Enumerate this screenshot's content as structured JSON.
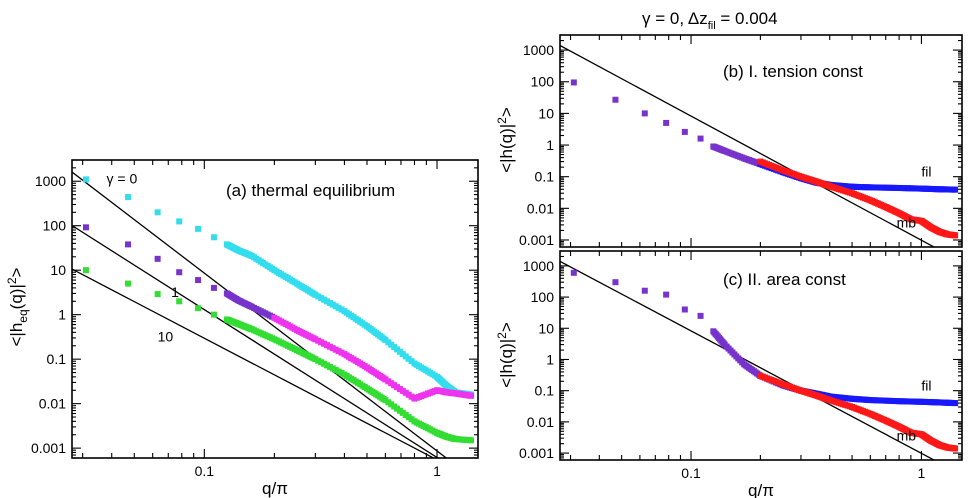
{
  "figure_title": "γ = 0, Δz",
  "figure_title_sub": "fil",
  "figure_title_tail": " = 0.004",
  "colors": {
    "cyan": "#33ddee",
    "magenta": "#ee33ee",
    "purple": "#7733cc",
    "green": "#33dd33",
    "blue": "#1818ff",
    "red": "#ff1818",
    "fit": "#000000"
  },
  "chart_data": [
    {
      "id": "a",
      "type": "scatter",
      "title": "(a) thermal equilibrium",
      "xlabel": "q/π",
      "ylabel_pre": "<|h",
      "ylabel_sub": "eq",
      "ylabel_post": "(q)|",
      "ylabel_sup": "2",
      "ylabel_end": ">",
      "xscale": "log",
      "yscale": "log",
      "xlim": [
        0.027,
        1.5
      ],
      "ylim": [
        0.0006,
        3000
      ],
      "xticks": [
        0.1,
        1
      ],
      "xtick_labels": [
        "0.1",
        "1"
      ],
      "yticks": [
        0.001,
        0.01,
        0.1,
        1,
        10,
        100,
        1000
      ],
      "ytick_labels": [
        "0.001",
        "0.01",
        "0.1",
        "1",
        "10",
        "100",
        "1000"
      ],
      "annotations": [
        {
          "text": "γ = 0",
          "x": 0.038,
          "y": 900
        },
        {
          "text": "1",
          "x": 0.072,
          "y": 2.5
        },
        {
          "text": "10",
          "x": 0.063,
          "y": 0.25
        }
      ],
      "series": [
        {
          "gamma": 0,
          "color": "cyan",
          "x": [
            0.031,
            0.047,
            0.063,
            0.078,
            0.094,
            0.11,
            0.125,
            0.14,
            0.16,
            0.2,
            0.25,
            0.3,
            0.4,
            0.5,
            0.6,
            0.8,
            1.0,
            1.1,
            1.2,
            1.4
          ],
          "y": [
            1100,
            440,
            200,
            125,
            85,
            55,
            38,
            28,
            21,
            10,
            5,
            2.8,
            1.2,
            0.55,
            0.27,
            0.08,
            0.04,
            0.025,
            0.018,
            0.016
          ]
        },
        {
          "gamma": 1,
          "color": "magenta",
          "x": [
            0.031,
            0.047,
            0.063,
            0.078,
            0.094,
            0.11,
            0.125,
            0.14,
            0.16,
            0.2,
            0.25,
            0.3,
            0.4,
            0.5,
            0.6,
            0.8,
            1.0,
            1.1,
            1.2,
            1.4
          ],
          "y": [
            92,
            38,
            18,
            9,
            6,
            4,
            3,
            2.1,
            1.5,
            0.85,
            0.45,
            0.28,
            0.13,
            0.065,
            0.035,
            0.013,
            0.02,
            0.018,
            0.017,
            0.015
          ]
        },
        {
          "gamma": 10,
          "color": "green",
          "x": [
            0.031,
            0.047,
            0.063,
            0.078,
            0.094,
            0.11,
            0.125,
            0.14,
            0.16,
            0.2,
            0.25,
            0.3,
            0.4,
            0.5,
            0.6,
            0.8,
            1.0,
            1.1,
            1.2,
            1.4
          ],
          "y": [
            10,
            5,
            2.9,
            2,
            1.4,
            1,
            0.78,
            0.62,
            0.47,
            0.28,
            0.16,
            0.1,
            0.045,
            0.022,
            0.012,
            0.004,
            0.0022,
            0.0018,
            0.0016,
            0.0015
          ]
        }
      ],
      "fit_lines": [
        {
          "gamma": 0,
          "x": [
            0.027,
            1.5
          ],
          "y": [
            1610,
            0.000171
          ]
        },
        {
          "gamma": 1,
          "x": [
            0.027,
            1.5
          ],
          "y": [
            101,
            0.00016
          ]
        },
        {
          "gamma": 10,
          "x": [
            0.027,
            1.5
          ],
          "y": [
            10.6,
            0.00018
          ]
        }
      ]
    },
    {
      "id": "b",
      "type": "scatter",
      "title": "(b) I. tension const",
      "xlabel": "",
      "ylabel_pre": "<|h(q)|",
      "ylabel_sup": "2",
      "ylabel_end": ">",
      "xscale": "log",
      "yscale": "log",
      "xlim": [
        0.027,
        1.5
      ],
      "ylim": [
        0.0006,
        3000
      ],
      "xticks": [
        0.1,
        1
      ],
      "xtick_labels": [
        "",
        ""
      ],
      "yticks": [
        0.001,
        0.01,
        0.1,
        1,
        10,
        100,
        1000
      ],
      "ytick_labels": [
        "0.001",
        "0.01",
        "0.1",
        "1",
        "10",
        "100",
        "1000"
      ],
      "series_labels": [
        {
          "text": "fil",
          "color": "blue",
          "x": 1.0,
          "y": 0.1
        },
        {
          "text": "mb",
          "color": "red",
          "x": 0.78,
          "y": 0.0025
        }
      ],
      "series": [
        {
          "name": "fil",
          "color": "blue",
          "x": [
            0.031,
            0.047,
            0.063,
            0.078,
            0.094,
            0.11,
            0.125,
            0.14,
            0.17,
            0.2,
            0.25,
            0.3,
            0.35,
            0.4,
            0.5,
            0.6,
            0.8,
            1.0,
            1.2,
            1.4
          ],
          "y": [
            95,
            27,
            10,
            5,
            2.6,
            1.6,
            0.9,
            0.65,
            0.38,
            0.25,
            0.14,
            0.09,
            0.065,
            0.055,
            0.048,
            0.046,
            0.044,
            0.042,
            0.04,
            0.039
          ]
        },
        {
          "name": "mb",
          "color": "red",
          "x": [
            0.2,
            0.25,
            0.3,
            0.35,
            0.4,
            0.5,
            0.6,
            0.7,
            0.8,
            0.9,
            1.0,
            1.1,
            1.2,
            1.3,
            1.4
          ],
          "y": [
            0.3,
            0.16,
            0.1,
            0.07,
            0.05,
            0.03,
            0.018,
            0.011,
            0.007,
            0.0045,
            0.004,
            0.0025,
            0.0018,
            0.0015,
            0.0014
          ]
        }
      ],
      "fit_lines": [
        {
          "x": [
            0.027,
            1.5
          ],
          "y": [
            1400,
            0.0002
          ]
        }
      ]
    },
    {
      "id": "c",
      "type": "scatter",
      "title": "(c) II. area const",
      "xlabel": "q/π",
      "ylabel_pre": "<|h(q)|",
      "ylabel_sup": "2",
      "ylabel_end": ">",
      "xscale": "log",
      "yscale": "log",
      "xlim": [
        0.027,
        1.5
      ],
      "ylim": [
        0.0006,
        3000
      ],
      "xticks": [
        0.1,
        1
      ],
      "xtick_labels": [
        "0.1",
        "1"
      ],
      "yticks": [
        0.001,
        0.01,
        0.1,
        1,
        10,
        100,
        1000
      ],
      "ytick_labels": [
        "0.001",
        "0.01",
        "0.1",
        "1",
        "10",
        "100",
        "1000"
      ],
      "series_labels": [
        {
          "text": "fil",
          "color": "blue",
          "x": 1.0,
          "y": 0.1
        },
        {
          "text": "mb",
          "color": "red",
          "x": 0.78,
          "y": 0.0025
        }
      ],
      "series": [
        {
          "name": "fil",
          "color": "blue",
          "x": [
            0.031,
            0.047,
            0.063,
            0.078,
            0.094,
            0.11,
            0.125,
            0.14,
            0.17,
            0.2,
            0.25,
            0.3,
            0.35,
            0.4,
            0.5,
            0.6,
            0.8,
            1.0,
            1.2,
            1.4
          ],
          "y": [
            600,
            300,
            160,
            120,
            40,
            25,
            8,
            3,
            0.7,
            0.3,
            0.15,
            0.1,
            0.08,
            0.065,
            0.055,
            0.05,
            0.046,
            0.044,
            0.042,
            0.04
          ]
        },
        {
          "name": "mb",
          "color": "red",
          "x": [
            0.2,
            0.25,
            0.3,
            0.35,
            0.4,
            0.5,
            0.6,
            0.7,
            0.8,
            0.9,
            1.0,
            1.1,
            1.2,
            1.3,
            1.4
          ],
          "y": [
            0.3,
            0.16,
            0.1,
            0.07,
            0.05,
            0.03,
            0.018,
            0.011,
            0.007,
            0.0045,
            0.004,
            0.0025,
            0.0018,
            0.0015,
            0.0014
          ]
        }
      ],
      "fit_lines": [
        {
          "x": [
            0.027,
            1.5
          ],
          "y": [
            1400,
            0.0002
          ]
        }
      ]
    }
  ]
}
